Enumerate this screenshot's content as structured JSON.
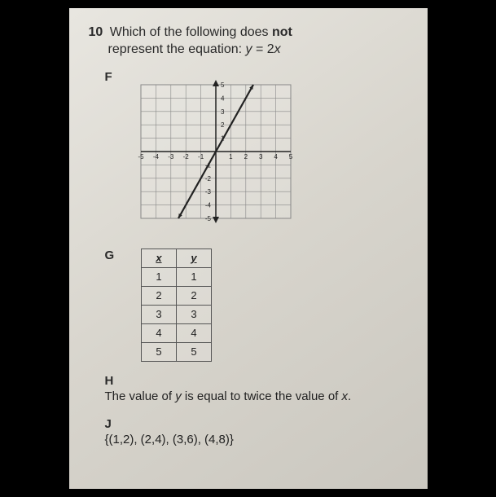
{
  "question": {
    "number": "10",
    "stem_before_bold": "Which of the following does ",
    "bold_word": "not",
    "stem_after_bold": " represent the equation:  ",
    "equation_lhs": "y",
    "equation_eq": " = 2",
    "equation_rhs": "x"
  },
  "optionF": {
    "label": "F",
    "chart": {
      "type": "line",
      "xlim": [
        -5,
        5
      ],
      "ylim": [
        -5,
        5
      ],
      "grid_step": 1,
      "x_ticks": [
        -5,
        -4,
        -3,
        -2,
        -1,
        1,
        2,
        3,
        4,
        5
      ],
      "y_ticks": [
        -5,
        -4,
        -3,
        -2,
        -1,
        1,
        2,
        3,
        4,
        5
      ],
      "line_points": [
        [
          -2.5,
          -5
        ],
        [
          2.5,
          5
        ]
      ],
      "line_color": "#222222",
      "line_width": 2.2,
      "grid_color": "#888888",
      "axis_color": "#222222",
      "background_color": "rgba(255,255,255,0.15)",
      "tick_fontsize": 8
    }
  },
  "optionG": {
    "label": "G",
    "table": {
      "headers": [
        "x",
        "y"
      ],
      "rows": [
        [
          "1",
          "1"
        ],
        [
          "2",
          "2"
        ],
        [
          "3",
          "3"
        ],
        [
          "4",
          "4"
        ],
        [
          "5",
          "5"
        ]
      ]
    }
  },
  "optionH": {
    "label": "H",
    "text_before_y": "The value of ",
    "y": "y",
    "text_mid": " is equal to twice the value of ",
    "x": "x",
    "text_after": "."
  },
  "optionJ": {
    "label": "J",
    "set": "{(1,2), (2,4), (3,6), (4,8)}"
  }
}
